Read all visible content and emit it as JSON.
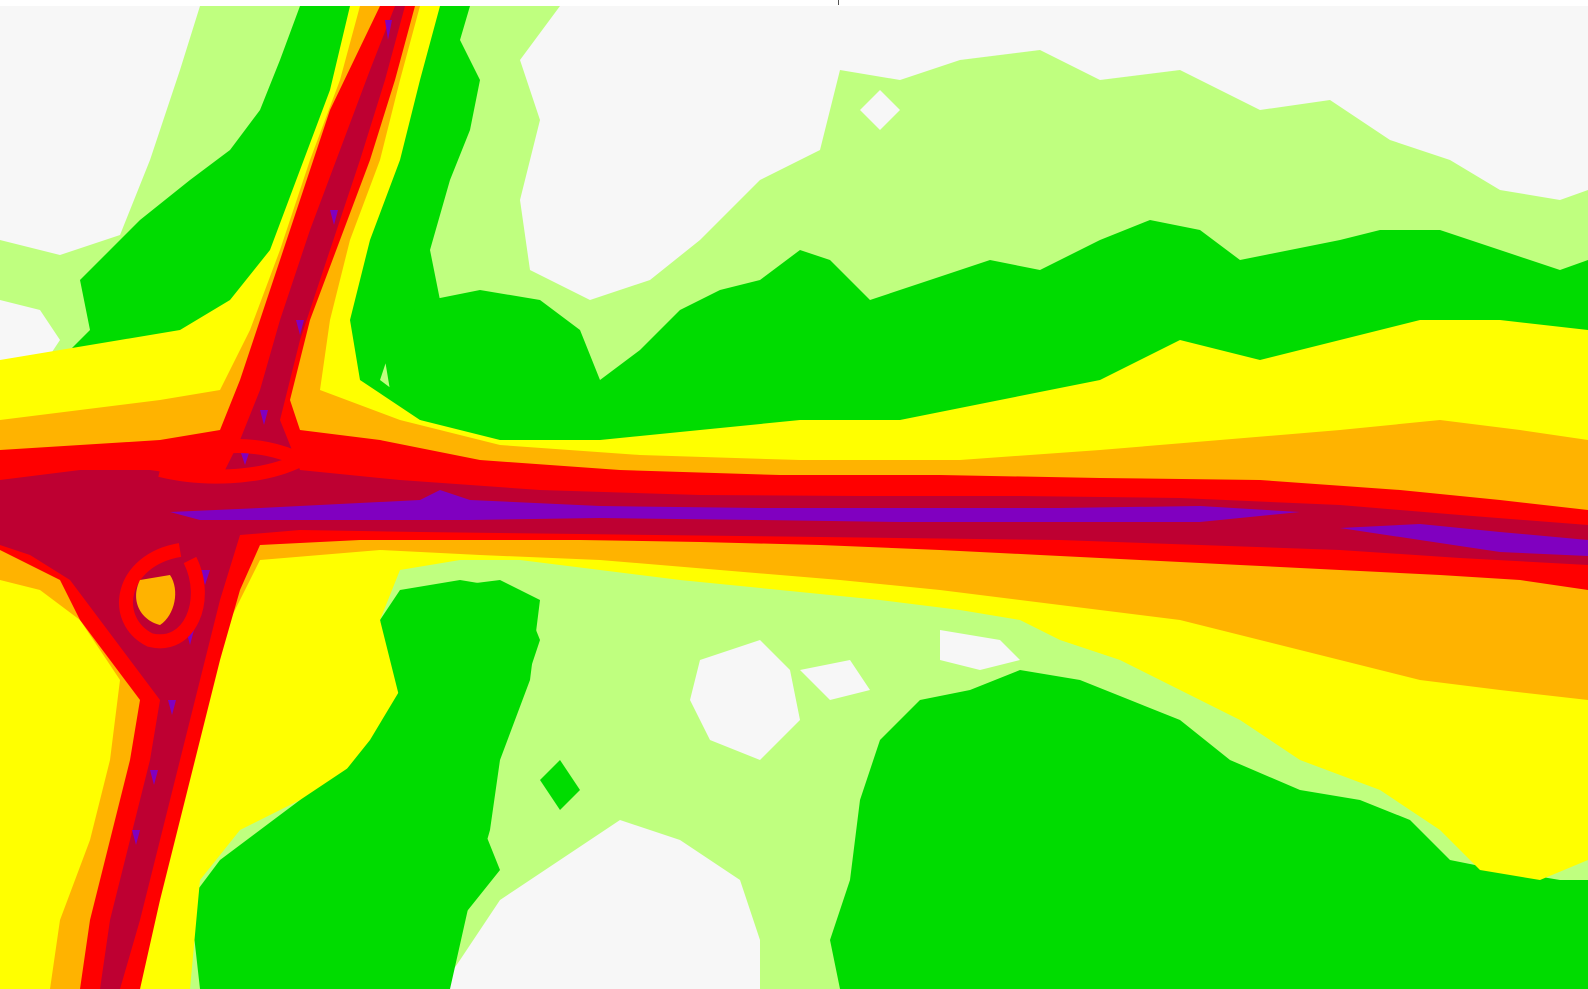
{
  "map": {
    "type": "noise-contour-map",
    "legend_visible": false,
    "labels_visible": false,
    "bands": [
      {
        "id": "band-0",
        "color": "#f7f7f7"
      },
      {
        "id": "band-1",
        "color": "#bfff7f"
      },
      {
        "id": "band-2",
        "color": "#00dc00"
      },
      {
        "id": "band-3",
        "color": "#ffff00"
      },
      {
        "id": "band-4",
        "color": "#ffb300"
      },
      {
        "id": "band-5",
        "color": "#ff0000"
      },
      {
        "id": "band-6",
        "color": "#be0032"
      },
      {
        "id": "band-7",
        "color": "#8000c0"
      }
    ]
  }
}
